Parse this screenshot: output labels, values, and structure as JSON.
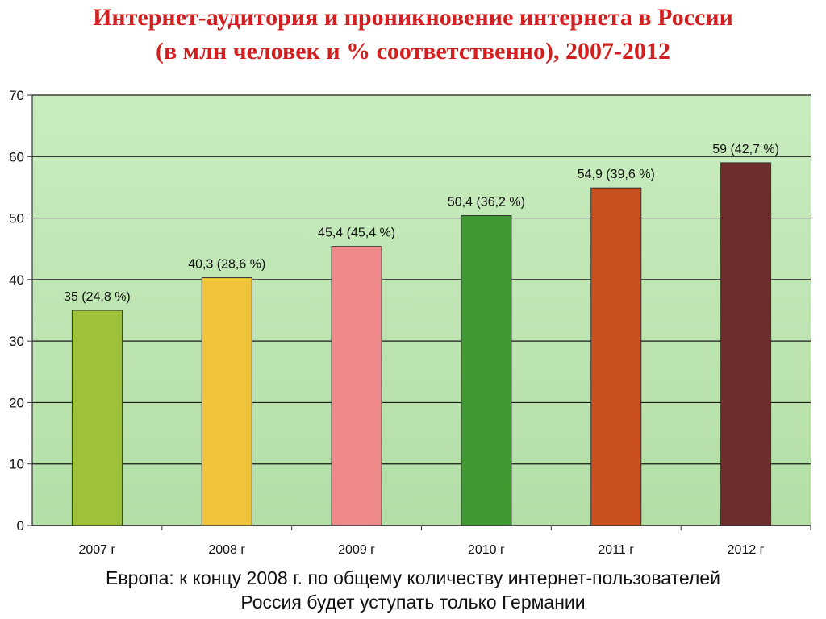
{
  "header": {
    "title_line1": "Интернет-аудитория и проникновение интернета в России",
    "title_line2": "(в млн человек и % соответственно), 2007-2012"
  },
  "footer": {
    "line1": "Европа: к концу 2008 г. по общему количеству интернет-пользователей",
    "line2": "Россия будет уступать только Германии"
  },
  "colors": {
    "title": "#d21f1f",
    "plot_background": "#bfe6b4",
    "bars": [
      "#9dc23a",
      "#f0c43a",
      "#ef8a8a",
      "#3f9b31",
      "#c9501f",
      "#6d2d2d"
    ]
  },
  "chart_data": {
    "type": "bar",
    "title": "Интернет-аудитория и проникновение интернета в России (в млн человек и % соответственно), 2007-2012",
    "categories": [
      "2007 г",
      "2008 г",
      "2009 г",
      "2010 г",
      "2011 г",
      "2012 г"
    ],
    "values": [
      35,
      40.3,
      45.4,
      50.4,
      54.9,
      59
    ],
    "data_labels": [
      "35 (24,8 %)",
      "40,3 (28,6 %)",
      "45,4 (45,4 %)",
      "50,4 (36,2 %)",
      "54,9 (39,6 %)",
      "59 (42,7 %)"
    ],
    "yticks": [
      "0",
      "10",
      "20",
      "30",
      "40",
      "50",
      "60",
      "70"
    ],
    "ylim": [
      0,
      70
    ],
    "grid": true,
    "legend": "none",
    "xlabel": "",
    "ylabel": ""
  }
}
